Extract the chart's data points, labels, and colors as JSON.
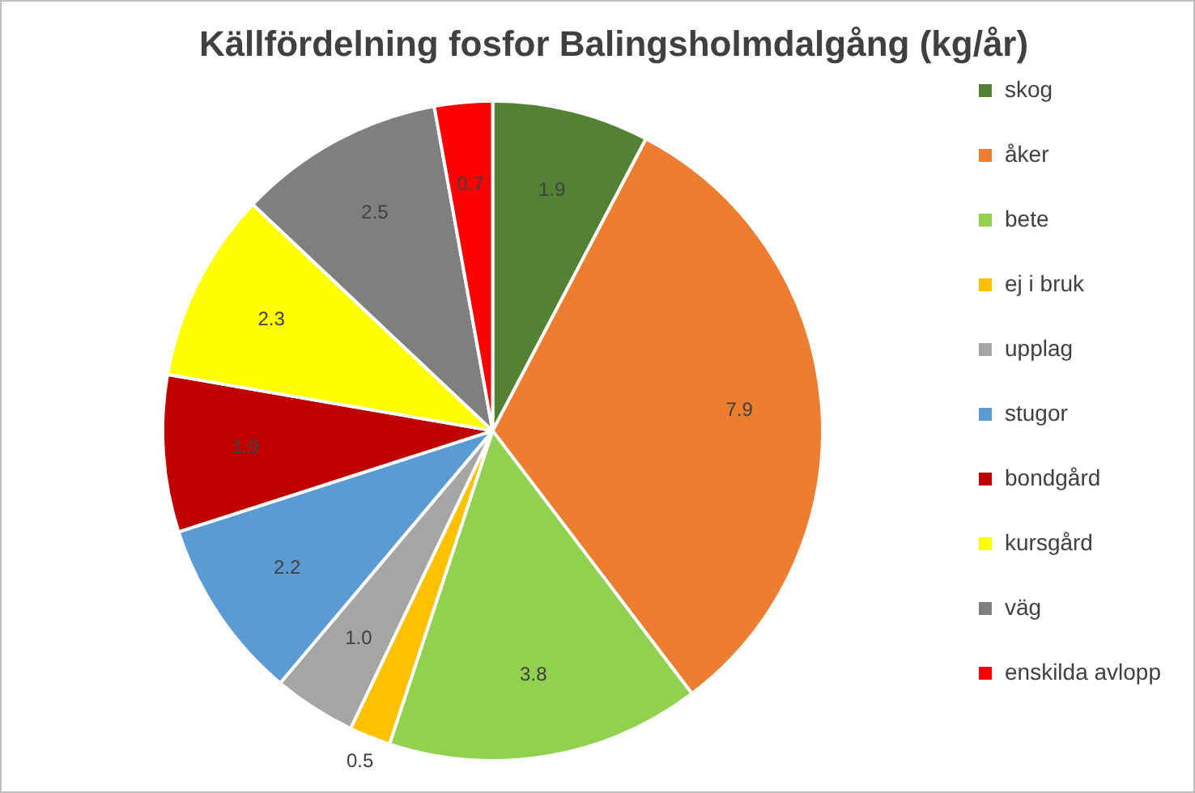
{
  "chart_data": {
    "type": "pie",
    "title": "Källfördelning fosfor Balingsholmdalgång (kg/år)",
    "categories": [
      "skog",
      "åker",
      "bete",
      "ej i bruk",
      "upplag",
      "stugor",
      "bondgård",
      "kursgård",
      "väg",
      "enskilda avlopp"
    ],
    "values": [
      1.9,
      7.9,
      3.8,
      0.5,
      1.0,
      2.2,
      1.9,
      2.3,
      2.5,
      0.7
    ],
    "value_labels": [
      "1.9",
      "7.9",
      "3.8",
      "0.5",
      "1.0",
      "2.2",
      "1.9",
      "2.3",
      "2.5",
      "0.7"
    ],
    "colors": [
      "#548235",
      "#ed7d31",
      "#92d050",
      "#ffc000",
      "#a5a5a5",
      "#5b9bd5",
      "#c00000",
      "#ffff00",
      "#7f7f7f",
      "#ff0000"
    ],
    "legend": "right"
  }
}
